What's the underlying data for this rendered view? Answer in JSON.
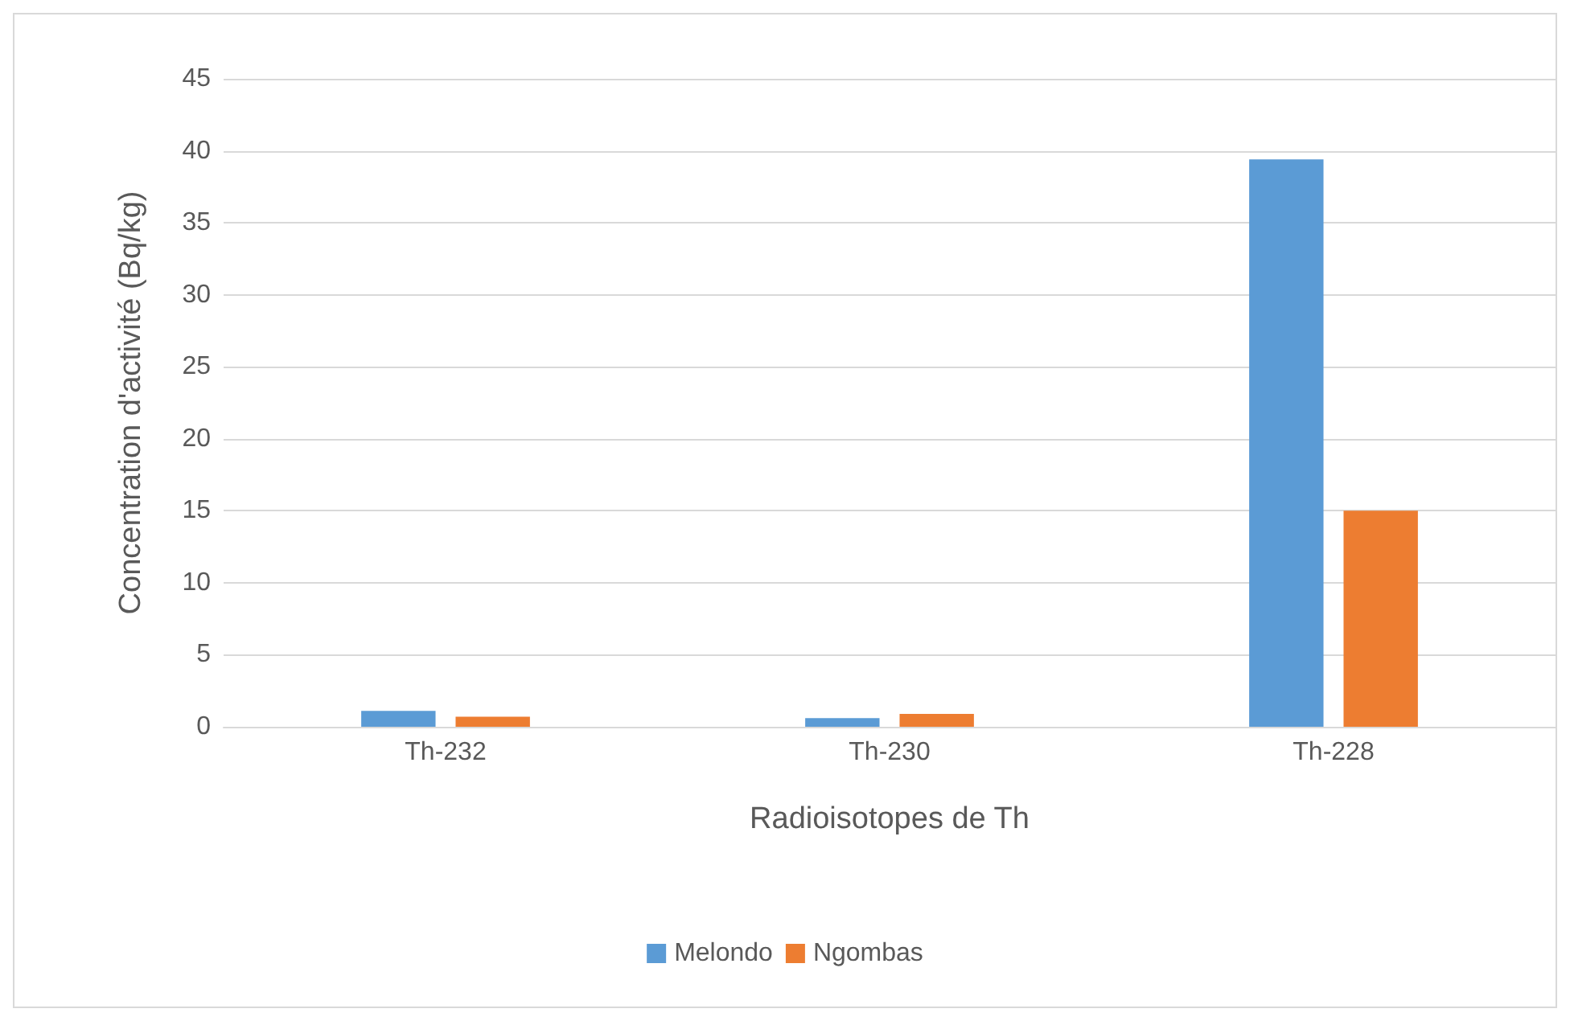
{
  "chart_data": {
    "type": "bar",
    "xlabel": "Radioisotopes de Th",
    "ylabel": "Concentration d'activité (Bq/kg)",
    "categories": [
      "Th-232",
      "Th-230",
      "Th-228"
    ],
    "series": [
      {
        "name": "Melondo",
        "color": "#5b9bd5",
        "values": [
          1.1,
          0.6,
          39.4
        ]
      },
      {
        "name": "Ngombas",
        "color": "#ed7d31",
        "values": [
          0.7,
          0.9,
          15
        ]
      }
    ],
    "ylim": [
      0,
      45
    ],
    "yticks": [
      0,
      5,
      10,
      15,
      20,
      25,
      30,
      35,
      40,
      45
    ],
    "grid": "y",
    "legend": "bottom"
  }
}
